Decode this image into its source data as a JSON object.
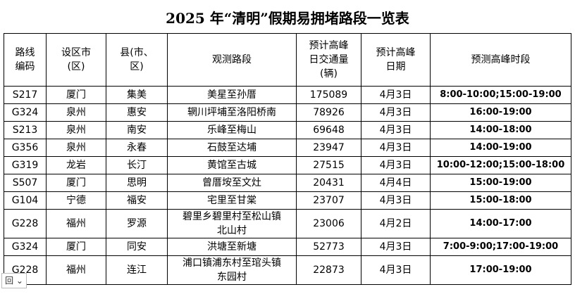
{
  "title": "2025 年“清明”假期易拥堵路段一览表",
  "table": {
    "header": [
      "路线\n编码",
      "设区市\n(区)",
      "县(市、\n区)",
      "观测路段",
      "预计高峰\n日交通量\n(辆)",
      "预计高峰\n日期",
      "预测高峰时段"
    ],
    "rows": [
      [
        "S217",
        "厦门",
        "集美",
        "美星至孙厝",
        "175089",
        "4月3日",
        "8:00-10:00;15:00-19:00"
      ],
      [
        "G324",
        "泉州",
        "惠安",
        "辋川坪埔至洛阳桥南",
        "78926",
        "4月3日",
        "16:00-19:00"
      ],
      [
        "S213",
        "泉州",
        "南安",
        "乐峰至梅山",
        "69648",
        "4月3日",
        "14:00-18:00"
      ],
      [
        "G356",
        "泉州",
        "永春",
        "石鼓至达埔",
        "23947",
        "4月3日",
        "14:00-19:00"
      ],
      [
        "G319",
        "龙岩",
        "长汀",
        "黄馆至古城",
        "27515",
        "4月3日",
        "10:00-12:00;15:00-18:00"
      ],
      [
        "S507",
        "厦门",
        "思明",
        "曾厝垵至文灶",
        "20431",
        "4月4日",
        "15:00-19:00"
      ],
      [
        "G104",
        "宁德",
        "福安",
        "宅里至甘棠",
        "23707",
        "4月3日",
        "15:00-18:00"
      ],
      [
        "G228",
        "福州",
        "罗源",
        "碧里乡碧里村至松山镇北山村",
        "23006",
        "4月2日",
        "14:00-17:00"
      ],
      [
        "G324",
        "厦门",
        "同安",
        "洪塘至新塘",
        "52773",
        "4月3日",
        "7:00-9:00;17:00-19:00"
      ],
      [
        "G228",
        "福州",
        "连江",
        "浦口镇浦东村至琯头镇东园村",
        "22873",
        "4月3日",
        "17:00-19:00"
      ]
    ]
  }
}
